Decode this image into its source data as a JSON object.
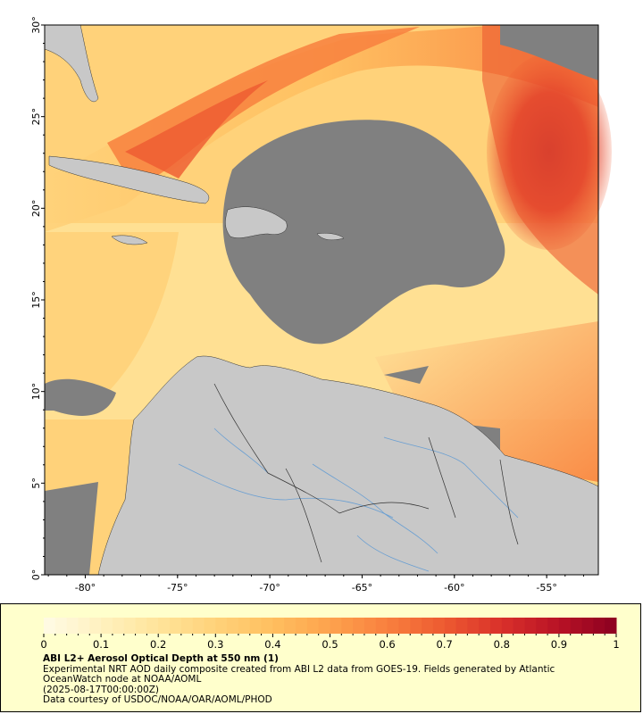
{
  "map": {
    "lat_ticks": [
      "0°",
      "5°",
      "10°",
      "15°",
      "20°",
      "25°",
      "30°"
    ],
    "lon_ticks": [
      "-80°",
      "-75°",
      "-70°",
      "-65°",
      "-60°",
      "-55°"
    ],
    "extent": {
      "lon_min": -82.2,
      "lon_max": -52.2,
      "lat_min": 0,
      "lat_max": 30
    },
    "colors": {
      "no_data": "#808080",
      "land": "#c8c8c8",
      "rivers": "#6a9fd2",
      "borders": "#333333"
    }
  },
  "colorbar": {
    "ticks": [
      "0",
      "0.1",
      "0.2",
      "0.3",
      "0.4",
      "0.5",
      "0.6",
      "0.7",
      "0.8",
      "0.9",
      "1"
    ],
    "min": 0,
    "max": 1,
    "stops": [
      "#fffbe6",
      "#fff1bf",
      "#ffe49a",
      "#ffd27a",
      "#ffbf5f",
      "#fda24d",
      "#f8803e",
      "#ed5a31",
      "#d9302a",
      "#b81226",
      "#8b0020"
    ]
  },
  "legend": {
    "title": "ABI L2+ Aerosol Optical Depth at 550 nm (1)",
    "line1": "Experimental NRT AOD daily composite created from ABI L2 data from GOES-19. Fields generated by Atlantic",
    "line2": "OceanWatch node at NOAA/AOML",
    "line3": "(2025-08-17T00:00:00Z)",
    "line4": "Data courtesy of USDOC/NOAA/OAR/AOML/PHOD"
  }
}
